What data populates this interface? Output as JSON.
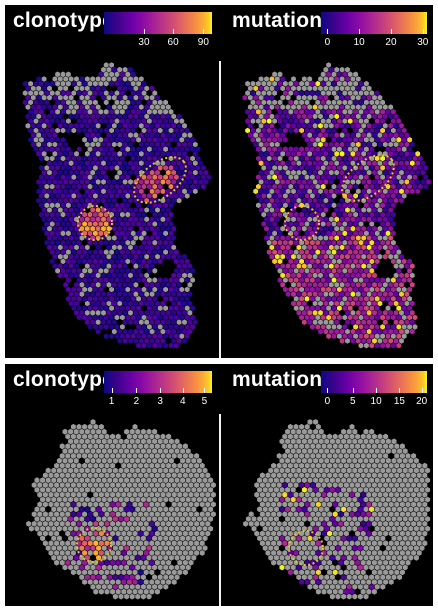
{
  "panels": {
    "top_left": {
      "title": "clonotype",
      "colorbar_ticks": [
        "30",
        "60",
        "90"
      ],
      "tick_fractions": [
        0.37,
        0.64,
        0.92
      ]
    },
    "top_right": {
      "title": "mutation",
      "colorbar_ticks": [
        "0",
        "10",
        "20",
        "30"
      ],
      "tick_fractions": [
        0.06,
        0.36,
        0.66,
        0.96
      ]
    },
    "bottom_left": {
      "title": "clonotype",
      "colorbar_ticks": [
        "1",
        "2",
        "3",
        "4",
        "5"
      ],
      "tick_fractions": [
        0.07,
        0.3,
        0.52,
        0.73,
        0.93
      ]
    },
    "bottom_right": {
      "title": "mutation",
      "colorbar_ticks": [
        "0",
        "5",
        "10",
        "15",
        "20"
      ],
      "tick_fractions": [
        0.06,
        0.3,
        0.52,
        0.74,
        0.95
      ]
    }
  },
  "colors": {
    "background": "#000000",
    "spot_empty": "#9a9a9a",
    "annotation_circle": "#e8c12b",
    "colormap": "plasma"
  }
}
